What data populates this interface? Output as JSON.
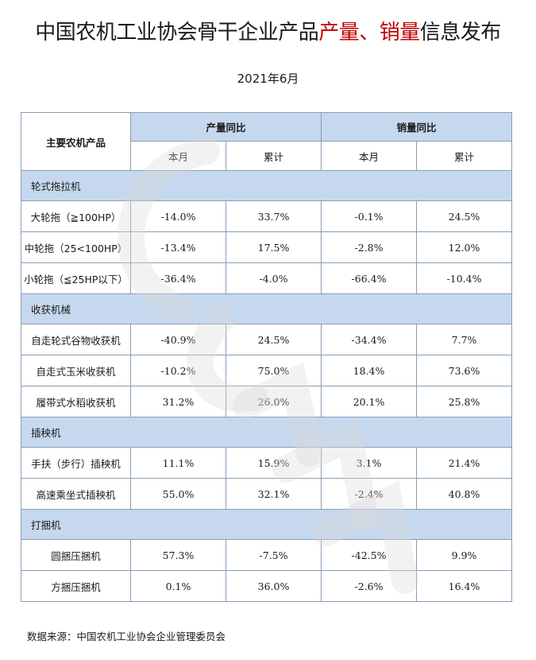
{
  "title": {
    "part1": "中国农机工业协会骨干企业产品",
    "part2": "产量、销量",
    "part3": "信息发布"
  },
  "subtitle": "2021年6月",
  "table": {
    "corner": "主要农机产品",
    "group_production": "产量同比",
    "group_sales": "销量同比",
    "sub_month": "本月",
    "sub_cumulative": "累计",
    "categories": [
      {
        "name": "轮式拖拉机",
        "rows": [
          {
            "name": "大轮拖（≧100HP）",
            "prod_month": "-14.0%",
            "prod_cum": "33.7%",
            "sales_month": "-0.1%",
            "sales_cum": "24.5%"
          },
          {
            "name": "中轮拖（25<100HP）",
            "prod_month": "-13.4%",
            "prod_cum": "17.5%",
            "sales_month": "-2.8%",
            "sales_cum": "12.0%"
          },
          {
            "name": "小轮拖（≦25HP以下）",
            "prod_month": "-36.4%",
            "prod_cum": "-4.0%",
            "sales_month": "-66.4%",
            "sales_cum": "-10.4%"
          }
        ]
      },
      {
        "name": "收获机械",
        "rows": [
          {
            "name": "自走轮式谷物收获机",
            "prod_month": "-40.9%",
            "prod_cum": "24.5%",
            "sales_month": "-34.4%",
            "sales_cum": "7.7%"
          },
          {
            "name": "自走式玉米收获机",
            "prod_month": "-10.2%",
            "prod_cum": "75.0%",
            "sales_month": "18.4%",
            "sales_cum": "73.6%"
          },
          {
            "name": "履带式水稻收获机",
            "prod_month": "31.2%",
            "prod_cum": "26.0%",
            "sales_month": "20.1%",
            "sales_cum": "25.8%"
          }
        ]
      },
      {
        "name": "插秧机",
        "rows": [
          {
            "name": "手扶（步行）插秧机",
            "prod_month": "11.1%",
            "prod_cum": "15.9%",
            "sales_month": "3.1%",
            "sales_cum": "21.4%"
          },
          {
            "name": "高速乘坐式插秧机",
            "prod_month": "55.0%",
            "prod_cum": "32.1%",
            "sales_month": "-2.4%",
            "sales_cum": "40.8%"
          }
        ]
      },
      {
        "name": "打捆机",
        "rows": [
          {
            "name": "圆捆压捆机",
            "prod_month": "57.3%",
            "prod_cum": "-7.5%",
            "sales_month": "-42.5%",
            "sales_cum": "9.9%"
          },
          {
            "name": "方捆压捆机",
            "prod_month": "0.1%",
            "prod_cum": "36.0%",
            "sales_month": "-2.6%",
            "sales_cum": "16.4%"
          }
        ]
      }
    ]
  },
  "footer": "数据来源：中国农机工业协会企业管理委员会",
  "colors": {
    "header_fill": "#c6d8ee",
    "title_highlight": "#c00000",
    "border": "#8a9cb8"
  },
  "watermark": {
    "icon": "logo-watermark"
  }
}
